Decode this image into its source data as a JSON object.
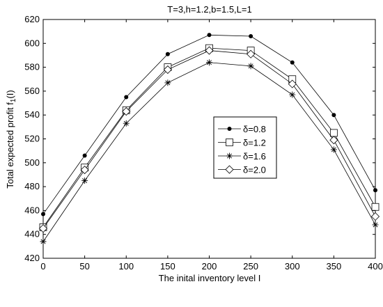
{
  "chart_data": {
    "type": "line",
    "title": "T=3,h=1.2,b=1.5,L=1",
    "xlabel": "The inital inventory level I",
    "ylabel_main": "Total expected profit f",
    "ylabel_sub": "1",
    "ylabel_tail": "(I)",
    "x": [
      0,
      50,
      100,
      150,
      200,
      250,
      300,
      350,
      400
    ],
    "xlim": [
      0,
      400
    ],
    "ylim": [
      420,
      620
    ],
    "xticks": [
      "0",
      "50",
      "100",
      "150",
      "200",
      "250",
      "300",
      "350",
      "400"
    ],
    "yticks": [
      "420",
      "440",
      "460",
      "480",
      "500",
      "520",
      "540",
      "560",
      "580",
      "600",
      "620"
    ],
    "grid": false,
    "legend_position": "right-middle",
    "series": [
      {
        "name": "δ=0.8",
        "marker": "dot",
        "values": [
          457,
          506,
          555,
          591,
          607,
          606,
          584,
          540,
          477
        ]
      },
      {
        "name": "δ=1.2",
        "marker": "square",
        "values": [
          446,
          496,
          544,
          580,
          596,
          594,
          570,
          525,
          463
        ]
      },
      {
        "name": "δ=1.6",
        "marker": "star",
        "values": [
          434,
          485,
          533,
          567,
          584,
          581,
          557,
          511,
          448
        ]
      },
      {
        "name": "δ=2.0",
        "marker": "diamond",
        "values": [
          445,
          494,
          543,
          578,
          594,
          591,
          566,
          519,
          455
        ]
      }
    ],
    "colors": {
      "line": "#000000",
      "axis": "#000000",
      "background": "#ffffff"
    }
  }
}
